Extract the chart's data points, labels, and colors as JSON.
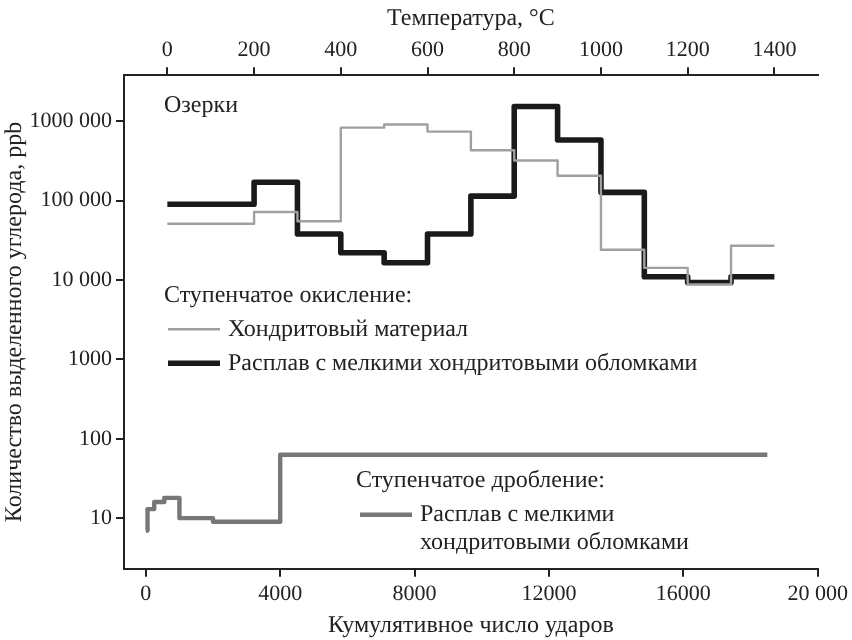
{
  "chart_data": {
    "type": "step",
    "xlabel": "Кумулятивное число ударов",
    "x2label": "Температура, °C",
    "ylabel": "Количество выделенного углерода, ppb",
    "annotations": [
      "Озерки",
      "Ступенчатое окисление:",
      "Ступенчатое дробление:"
    ],
    "series": [
      {
        "name": "Хондритовый материал",
        "color": "#a0a0a0",
        "axis": "x2",
        "x": [
          0,
          200,
          300,
          400,
          500,
          600,
          700,
          800,
          900,
          1000,
          1100,
          1200,
          1300,
          1400
        ],
        "values": [
          51000,
          72000,
          55000,
          830000,
          910000,
          740000,
          430000,
          320000,
          206000,
          24000,
          14200,
          8800,
          27000,
          27000
        ]
      },
      {
        "name": "Расплав с мелкими хондритовыми обломками",
        "color": "#1a1a1a",
        "axis": "x2",
        "x": [
          0,
          200,
          300,
          400,
          500,
          600,
          700,
          800,
          900,
          1000,
          1100,
          1200,
          1300,
          1400
        ],
        "values": [
          90000,
          170000,
          38000,
          22000,
          16500,
          38000,
          114000,
          1530000,
          580000,
          127000,
          11000,
          9300,
          11000,
          11000
        ]
      },
      {
        "name": "Расплав с мелкими хондритовыми обломками",
        "color": "#777777",
        "x": [
          0,
          50,
          250,
          550,
          1000,
          2000,
          4000,
          18500
        ],
        "values": [
          7,
          13,
          16,
          18,
          10,
          9,
          63,
          63
        ]
      }
    ],
    "xlim": [
      -650,
      20000
    ],
    "xticks": [
      0,
      4000,
      8000,
      12000,
      16000,
      {
        "value": 20000,
        "label": "20 000"
      }
    ],
    "x2lim": [
      -100,
      1500
    ],
    "x2ticks": [
      0,
      200,
      400,
      600,
      800,
      1000,
      1200,
      1400
    ],
    "ylim": [
      2.3,
      3800000
    ],
    "yticks": [
      10,
      100,
      1000,
      {
        "value": 10000,
        "label": "10 000"
      },
      {
        "value": 100000,
        "label": "100 000"
      },
      {
        "value": 1000000,
        "label": "1000 000"
      }
    ],
    "log": "y",
    "grid": false,
    "legend": "left",
    "line_style": "solid",
    "marker": "none"
  }
}
